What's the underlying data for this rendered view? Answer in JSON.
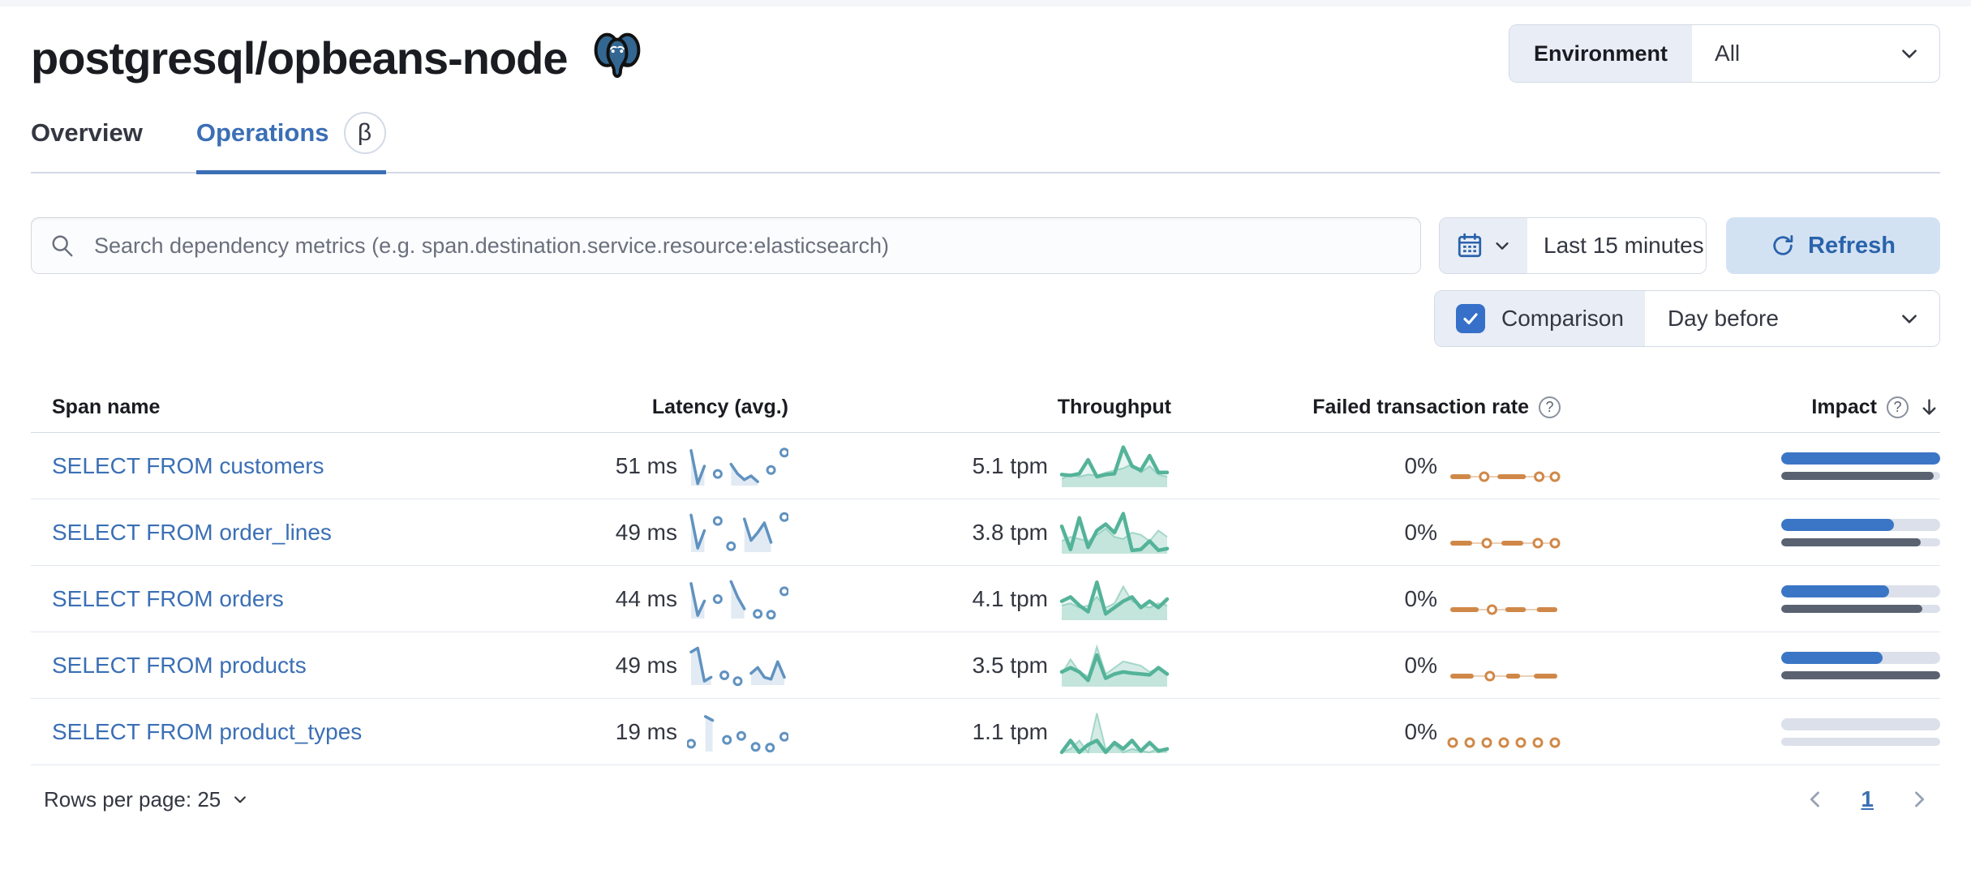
{
  "header": {
    "title": "postgresql/opbeans-node",
    "environment": {
      "label": "Environment",
      "value": "All"
    }
  },
  "tabs": {
    "overview": "Overview",
    "operations": "Operations",
    "operations_badge": "β"
  },
  "controls": {
    "search_placeholder": "Search dependency metrics (e.g. span.destination.service.resource:elasticsearch)",
    "time_range": "Last 15 minutes",
    "refresh_label": "Refresh",
    "comparison_label": "Comparison",
    "comparison_checked": true,
    "comparison_value": "Day before"
  },
  "table": {
    "headers": {
      "span_name": "Span name",
      "latency": "Latency (avg.)",
      "throughput": "Throughput",
      "failed_rate": "Failed transaction rate",
      "impact": "Impact"
    },
    "sorted_by": "Impact",
    "sort_direction": "desc",
    "rows": [
      {
        "span_name": "SELECT FROM customers",
        "latency": "51 ms",
        "throughput": "5.1 tpm",
        "failed_rate": "0%",
        "impact_pct": 100,
        "impact_previous_pct": 96,
        "latency_spark": [
          0.9,
          0.05,
          0.5,
          null,
          0.3,
          null,
          0.55,
          0.3,
          0.15,
          0.25,
          0.1,
          null,
          0.4,
          null,
          0.85
        ],
        "throughput_spark": [
          0.3,
          0.28,
          0.32,
          0.65,
          0.25,
          0.3,
          0.32,
          0.95,
          0.5,
          0.4,
          0.75,
          0.35,
          0.35
        ],
        "throughput_compare": [
          0.2,
          0.3,
          0.25,
          0.3,
          0.28,
          0.35,
          0.4,
          0.45,
          0.55,
          0.35,
          0.5,
          0.3,
          0.25
        ],
        "failed_spark": [
          0,
          0,
          0,
          null,
          0,
          null,
          0,
          0,
          0,
          0,
          null,
          0,
          null,
          0
        ],
        "failed_compare": [
          0,
          0,
          0,
          0,
          0,
          0,
          0,
          0,
          0,
          0,
          0,
          0,
          0,
          0
        ]
      },
      {
        "span_name": "SELECT FROM order_lines",
        "latency": "49 ms",
        "throughput": "3.8 tpm",
        "failed_rate": "0%",
        "impact_pct": 71,
        "impact_previous_pct": 88,
        "latency_spark": [
          0.95,
          0.1,
          0.55,
          null,
          0.8,
          null,
          0.15,
          null,
          0.85,
          0.3,
          0.5,
          0.75,
          0.25,
          null,
          0.9
        ],
        "throughput_spark": [
          0.65,
          0.1,
          0.85,
          0.15,
          0.55,
          0.7,
          0.5,
          0.95,
          0.08,
          0.1,
          0.3,
          0.08,
          0.12
        ],
        "throughput_compare": [
          0.3,
          0.4,
          0.35,
          0.3,
          0.45,
          0.6,
          0.4,
          0.35,
          0.5,
          0.45,
          0.3,
          0.55,
          0.4
        ],
        "failed_spark": [
          0,
          0,
          0,
          null,
          0,
          null,
          0,
          0,
          0,
          null,
          0,
          null,
          0
        ],
        "failed_compare": [
          0,
          0,
          0,
          0,
          0,
          0,
          0,
          0,
          0,
          0,
          0,
          0,
          0
        ]
      },
      {
        "span_name": "SELECT FROM orders",
        "latency": "44 ms",
        "throughput": "4.1 tpm",
        "failed_rate": "0%",
        "impact_pct": 68,
        "impact_previous_pct": 89,
        "latency_spark": [
          0.9,
          0.08,
          0.45,
          null,
          0.5,
          null,
          0.95,
          0.55,
          0.25,
          null,
          0.12,
          null,
          0.1,
          null,
          0.7
        ],
        "throughput_spark": [
          0.45,
          0.55,
          0.35,
          0.2,
          0.9,
          0.15,
          0.3,
          0.45,
          0.55,
          0.3,
          0.45,
          0.3,
          0.5
        ],
        "throughput_compare": [
          0.35,
          0.4,
          0.3,
          0.35,
          0.55,
          0.3,
          0.4,
          0.8,
          0.45,
          0.35,
          0.3,
          0.4,
          0.35
        ],
        "failed_spark": [
          0,
          0,
          0,
          0,
          null,
          0,
          null,
          0,
          0,
          0,
          null,
          0,
          0,
          0
        ],
        "failed_compare": [
          0,
          0,
          0,
          0,
          0,
          0,
          0,
          0,
          0,
          0,
          0,
          0,
          0,
          0
        ]
      },
      {
        "span_name": "SELECT FROM products",
        "latency": "49 ms",
        "throughput": "3.5 tpm",
        "failed_rate": "0%",
        "impact_pct": 64,
        "impact_previous_pct": 100,
        "latency_spark": [
          0.85,
          0.95,
          0.1,
          0.2,
          null,
          0.25,
          null,
          0.1,
          null,
          0.3,
          0.45,
          0.2,
          0.15,
          0.6,
          0.2
        ],
        "throughput_spark": [
          0.35,
          0.45,
          0.35,
          0.15,
          0.75,
          0.2,
          0.3,
          0.35,
          0.32,
          0.3,
          0.28,
          0.45,
          0.3
        ],
        "throughput_compare": [
          0.3,
          0.65,
          0.35,
          0.25,
          0.95,
          0.3,
          0.45,
          0.6,
          0.55,
          0.5,
          0.35,
          0.45,
          0.3
        ],
        "failed_spark": [
          0,
          0,
          0,
          null,
          0,
          null,
          0,
          0,
          null,
          0,
          0,
          0
        ],
        "failed_compare": [
          0,
          0,
          0,
          0,
          0,
          0,
          0,
          0,
          0,
          0,
          0,
          0
        ]
      },
      {
        "span_name": "SELECT FROM product_types",
        "latency": "19 ms",
        "throughput": "1.1 tpm",
        "failed_rate": "0%",
        "impact_pct": 0,
        "impact_previous_pct": 0,
        "latency_spark": [
          0.2,
          null,
          0.9,
          0.8,
          null,
          0.3,
          null,
          0.4,
          null,
          0.12,
          null,
          0.1,
          null,
          0.38
        ],
        "throughput_spark": [
          0.02,
          0.3,
          0.02,
          0.2,
          0.3,
          0.02,
          0.25,
          0.1,
          0.3,
          0.05,
          0.25,
          0.05,
          0.1
        ],
        "throughput_compare": [
          0.02,
          0.1,
          0.3,
          0.02,
          0.95,
          0.1,
          0.2,
          0.02,
          0.1,
          0.05,
          0.02,
          0.1,
          0.05
        ],
        "failed_spark": [
          0,
          null,
          0,
          null,
          0,
          null,
          0,
          null,
          0,
          null,
          0,
          null,
          0
        ],
        "failed_compare": null
      }
    ]
  },
  "pagination": {
    "rows_per_page": "Rows per page: 25",
    "page": "1"
  },
  "colors": {
    "accent_blue": "#3b6fb5",
    "latency_spark": "#6092c0",
    "throughput_spark": "#54b399",
    "failed_spark": "#d08848",
    "impact_bar": "#3b76c6",
    "impact_previous_bar": "#5a6271",
    "impact_track": "#dbe0ea",
    "checkbox_blue": "#3670c9",
    "refresh_bg": "#d3e2f3",
    "refresh_text": "#2a63ab",
    "postgres_logo_blue": "#336791"
  }
}
